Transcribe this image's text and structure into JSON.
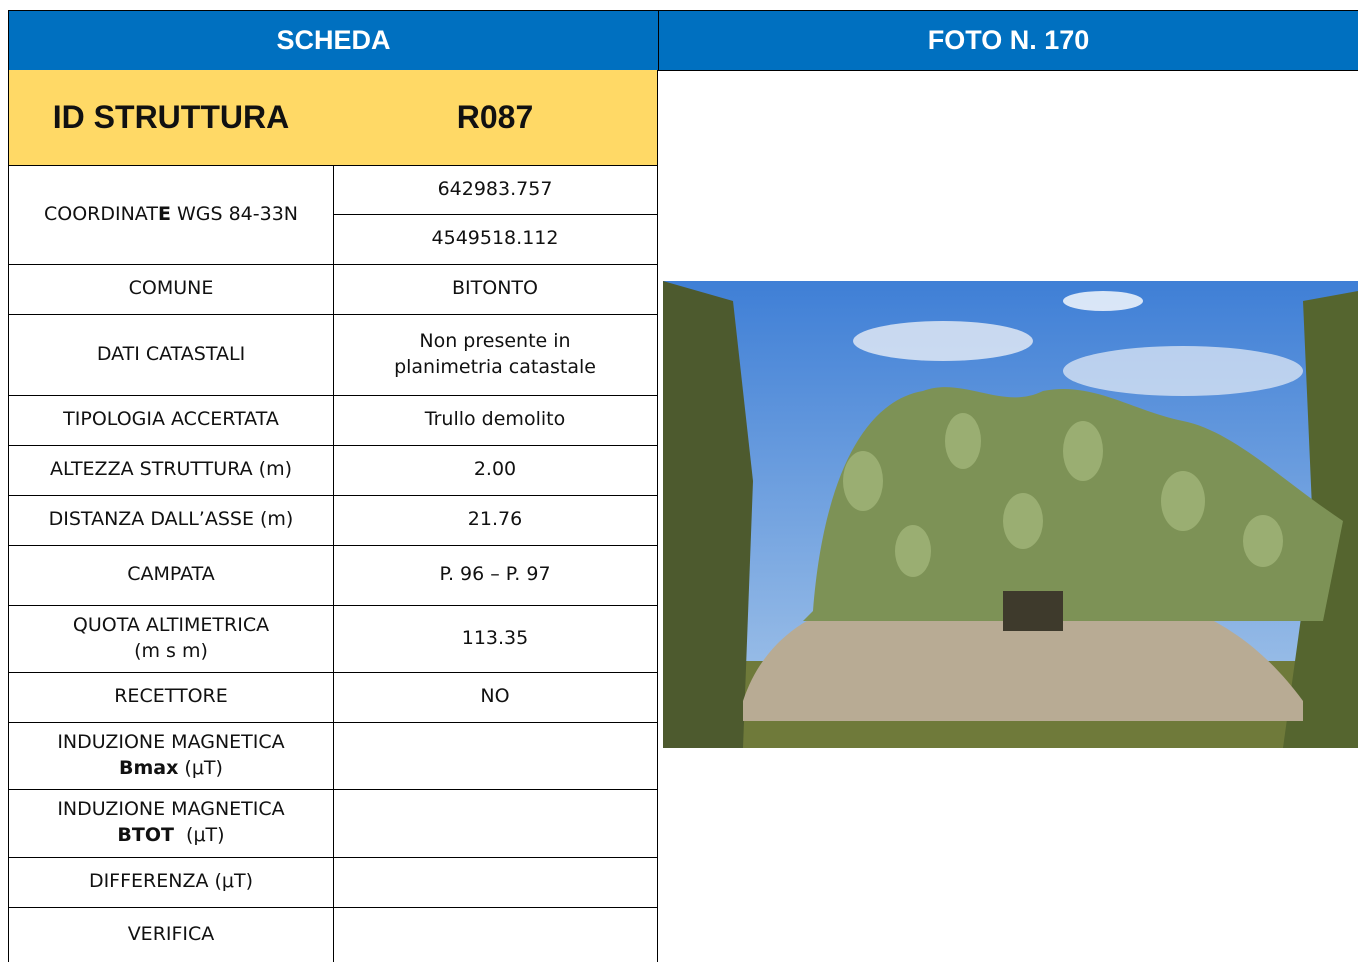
{
  "header": {
    "left": "SCHEDA",
    "right": "FOTO N. 170"
  },
  "id_row": {
    "label": "ID STRUTTURA",
    "value": "R087"
  },
  "rows": [
    {
      "label": [
        "COORDINAT",
        "E",
        " WGS 84-33N"
      ],
      "values": [
        "642983.757",
        "4549518.112"
      ]
    },
    {
      "label": "COMUNE",
      "value": "BITONTO"
    },
    {
      "label": "DATI CATASTALI",
      "value": [
        "Non presente in",
        "planimetria catastale"
      ]
    },
    {
      "label": "TIPOLOGIA ACCERTATA",
      "value": "Trullo demolito"
    },
    {
      "label": "ALTEZZA STRUTTURA (m)",
      "value": "2.00"
    },
    {
      "label": "DISTANZA DALL’ASSE (m)",
      "value": "21.76"
    },
    {
      "label": "CAMPATA",
      "value": "P. 96 – P. 97"
    },
    {
      "label": [
        "QUOTA ALTIMETRICA",
        "(m s m)"
      ],
      "value": "113.35"
    },
    {
      "label": "RECETTORE",
      "value": "NO"
    },
    {
      "label": [
        "INDUZIONE MAGNETICA",
        "Bmax",
        " (μT)"
      ]
    },
    {
      "label": [
        "INDUZIONE MAGNETICA",
        "BTOT",
        "  (μT)"
      ]
    },
    {
      "label": "DIFFERENZA (μT)"
    },
    {
      "label": "VERIFICA"
    }
  ]
}
